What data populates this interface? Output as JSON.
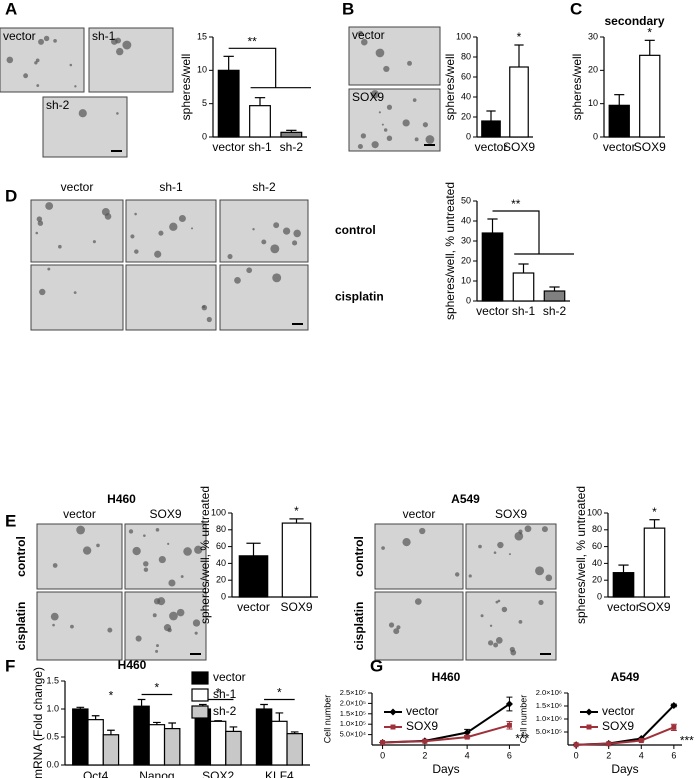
{
  "panel_labels": [
    "A",
    "B",
    "C",
    "D",
    "E",
    "F",
    "G"
  ],
  "micrographs": {
    "A": [
      "vector",
      "sh-1",
      "sh-2"
    ],
    "B": [
      "vector",
      "SOX9"
    ],
    "D": {
      "columns": [
        "vector",
        "sh-1",
        "sh-2"
      ],
      "rows": [
        "control",
        "cisplatin"
      ]
    },
    "E": [
      {
        "title": "H460",
        "columns": [
          "vector",
          "SOX9"
        ],
        "rows": [
          "control",
          "cisplatin"
        ]
      },
      {
        "title": "A549",
        "columns": [
          "vector",
          "SOX9"
        ],
        "rows": [
          "control",
          "cisplatin"
        ]
      }
    ]
  },
  "chart_data": [
    {
      "type": "bar",
      "ylabel": "spheres/well",
      "categories": [
        "vector",
        "sh-1",
        "sh-2"
      ],
      "values": [
        10,
        4.7,
        0.7
      ],
      "errors": [
        2.1,
        1.2,
        0.3
      ],
      "colors": [
        "#000000",
        "#ffffff",
        "#808080"
      ],
      "ylim": [
        0,
        15
      ],
      "yticks": [
        0,
        5,
        10,
        15
      ],
      "annotations": [
        "**"
      ]
    },
    {
      "type": "bar",
      "ylabel": "spheres/well",
      "categories": [
        "vector",
        "SOX9"
      ],
      "values": [
        16,
        70
      ],
      "errors": [
        10,
        22
      ],
      "colors": [
        "#000000",
        "#ffffff"
      ],
      "ylim": [
        0,
        100
      ],
      "yticks": [
        0,
        20,
        40,
        60,
        80,
        100
      ],
      "annotations": [
        "*"
      ]
    },
    {
      "type": "bar",
      "title": "secondary",
      "ylabel": "spheres/well",
      "categories": [
        "vector",
        "SOX9"
      ],
      "values": [
        9.5,
        24.5
      ],
      "errors": [
        3.2,
        4.5
      ],
      "colors": [
        "#000000",
        "#ffffff"
      ],
      "ylim": [
        0,
        30
      ],
      "yticks": [
        0,
        10,
        20,
        30
      ],
      "annotations": [
        "*"
      ]
    },
    {
      "type": "bar",
      "ylabel": "spheres/well, % untreated",
      "categories": [
        "vector",
        "sh-1",
        "sh-2"
      ],
      "values": [
        34,
        14,
        5
      ],
      "errors": [
        7,
        4.5,
        2
      ],
      "colors": [
        "#000000",
        "#ffffff",
        "#808080"
      ],
      "ylim": [
        0,
        50
      ],
      "yticks": [
        0,
        10,
        20,
        30,
        40,
        50
      ],
      "annotations": [
        "**"
      ]
    },
    {
      "type": "bar",
      "ylabel": "spheres/well, % untreated",
      "categories": [
        "vector",
        "SOX9"
      ],
      "values": [
        49,
        88
      ],
      "errors": [
        15,
        5
      ],
      "colors": [
        "#000000",
        "#ffffff"
      ],
      "ylim": [
        0,
        100
      ],
      "yticks": [
        0,
        20,
        40,
        60,
        80,
        100
      ],
      "annotations": [
        "*"
      ]
    },
    {
      "type": "bar",
      "ylabel": "spheres/well, % untreated",
      "categories": [
        "vector",
        "SOX9"
      ],
      "values": [
        29,
        82
      ],
      "errors": [
        9,
        10
      ],
      "colors": [
        "#000000",
        "#ffffff"
      ],
      "ylim": [
        0,
        100
      ],
      "yticks": [
        0,
        20,
        40,
        60,
        80,
        100
      ],
      "annotations": [
        "*"
      ]
    },
    {
      "type": "grouped_bar",
      "title": "H460",
      "ylabel": "mRNA (Fold change)",
      "categories": [
        "Oct4",
        "Nanog",
        "SOX2",
        "KLF4"
      ],
      "series": [
        {
          "name": "vector",
          "color": "#000000",
          "values": [
            1.0,
            1.05,
            1.0,
            1.0
          ],
          "errors": [
            0.03,
            0.12,
            0.08,
            0.08
          ]
        },
        {
          "name": "sh-1",
          "color": "#ffffff",
          "values": [
            0.81,
            0.72,
            0.78,
            0.78
          ],
          "errors": [
            0.07,
            0.04,
            0.01,
            0.15
          ]
        },
        {
          "name": "sh-2",
          "color": "#c8c8c8",
          "values": [
            0.54,
            0.65,
            0.6,
            0.56
          ],
          "errors": [
            0.08,
            0.1,
            0.08,
            0.03
          ]
        }
      ],
      "ylim": [
        0,
        1.5
      ],
      "yticks": [
        {
          "value": 0,
          "label": "0.0"
        },
        0.5,
        {
          "value": 1,
          "label": "1.0"
        },
        1.5
      ],
      "annotations": [
        "*",
        "*",
        "*",
        "*"
      ]
    },
    {
      "type": "line",
      "title": "H460",
      "xlabel": "Days",
      "ylabel": "Cell number",
      "x": [
        0,
        2,
        4,
        6
      ],
      "xlim": [
        -0.5,
        6.5
      ],
      "xticks": [
        0,
        2,
        4,
        6
      ],
      "series": [
        {
          "name": "vector",
          "color": "#000000",
          "values": [
            12000,
            20000,
            60000,
            197000
          ],
          "errors": [
            0,
            3000,
            15000,
            33000
          ]
        },
        {
          "name": "SOX9",
          "color": "#a0303a",
          "values": [
            12000,
            18000,
            38000,
            95000
          ],
          "errors": [
            0,
            2000,
            5000,
            18000
          ]
        }
      ],
      "ylim": [
        0,
        250000
      ],
      "yticks": [
        {
          "value": 50000,
          "label": "5.0×10⁴"
        },
        {
          "value": 100000,
          "label": "1.0×10⁵"
        },
        {
          "value": 150000,
          "label": "1.5×10⁵"
        },
        {
          "value": 200000,
          "label": "2.0×10⁵"
        },
        {
          "value": 250000,
          "label": "2.5×10⁵"
        }
      ],
      "annotations": [
        "***"
      ]
    },
    {
      "type": "line",
      "title": "A549",
      "xlabel": "Days",
      "ylabel": "Cell number",
      "x": [
        0,
        2,
        4,
        6
      ],
      "xlim": [
        -0.5,
        6.5
      ],
      "xticks": [
        0,
        2,
        4,
        6
      ],
      "series": [
        {
          "name": "vector",
          "color": "#000000",
          "values": [
            10000,
            60000,
            250000,
            1520000
          ],
          "errors": [
            0,
            0,
            20000,
            50000
          ]
        },
        {
          "name": "SOX9",
          "color": "#a0303a",
          "values": [
            10000,
            50000,
            170000,
            680000
          ],
          "errors": [
            0,
            0,
            20000,
            120000
          ]
        }
      ],
      "ylim": [
        0,
        2000000
      ],
      "yticks": [
        {
          "value": 500000,
          "label": "5.0×10⁵"
        },
        {
          "value": 1000000,
          "label": "1.0×10⁶"
        },
        {
          "value": 1500000,
          "label": "1.5×10⁶"
        },
        {
          "value": 2000000,
          "label": "2.0×10⁶"
        }
      ],
      "annotations": [
        "***"
      ]
    }
  ]
}
